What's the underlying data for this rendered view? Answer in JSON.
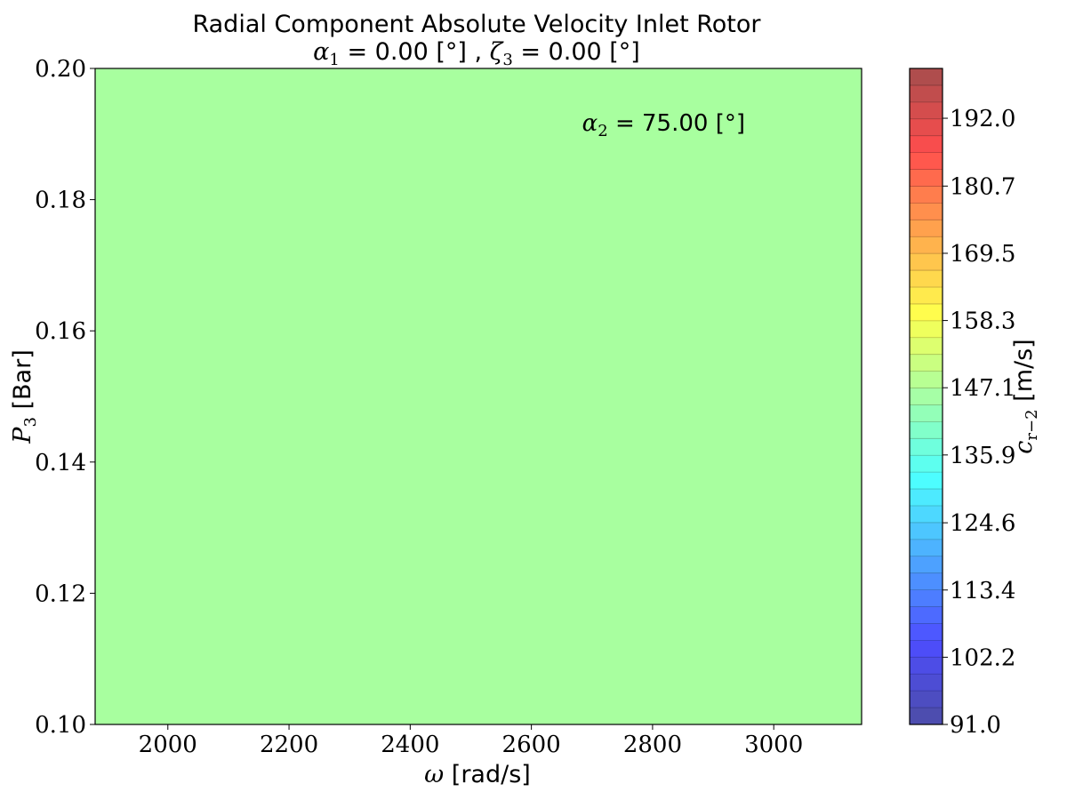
{
  "chart_data": {
    "type": "heatmap",
    "title_line1": "Radial Component Absolute Velocity Inlet Rotor",
    "title_line2": {
      "a_sym": "α",
      "a_sub": "1",
      "a_eq": " = 0.00 [°] , ",
      "z_sym": "ζ",
      "z_sub": "3",
      "z_eq": " = 0.00 [°]"
    },
    "xlabel": {
      "sym": "ω",
      "text": " [rad/s]"
    },
    "ylabel": {
      "sym": "P",
      "sub": "3",
      "text": " [Bar]"
    },
    "annotation": {
      "sym": "α",
      "sub": "2",
      "text": " = 75.00 [°]"
    },
    "colorbar_label": {
      "sym": "c",
      "sub": "r−2",
      "text": " [m/s]"
    },
    "xlim": [
      1880,
      3145
    ],
    "ylim": [
      0.1,
      0.2
    ],
    "x_ticks": [
      2000,
      2200,
      2400,
      2600,
      2800,
      3000
    ],
    "y_ticks": [
      "0.10",
      "0.12",
      "0.14",
      "0.16",
      "0.18",
      "0.20"
    ],
    "field_value": 147.1,
    "field_color": "#a8ff9f",
    "colorbar": {
      "colormap": "jet",
      "alpha": 0.7,
      "range": [
        91.0,
        200.3
      ],
      "levels": 39,
      "tick_values": [
        91.0,
        102.2,
        113.4,
        124.6,
        135.9,
        147.1,
        158.3,
        169.5,
        180.7,
        192.0
      ],
      "tick_labels": [
        "91.0",
        "102.2",
        "113.4",
        "124.6",
        "135.9",
        "147.1",
        "158.3",
        "169.5",
        "180.7",
        "192.0"
      ]
    },
    "grid": false
  }
}
